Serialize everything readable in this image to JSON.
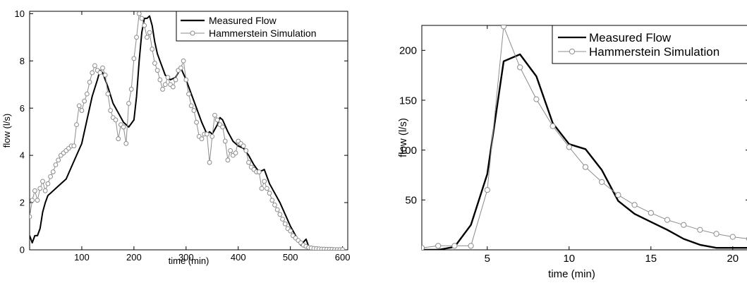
{
  "chart_data": [
    {
      "type": "line",
      "xlabel": "time (min)",
      "ylabel": "flow (l/s)",
      "xlim": [
        0,
        610
      ],
      "ylim": [
        0,
        10.1
      ],
      "xticks": [
        100,
        200,
        300,
        400,
        500,
        600
      ],
      "xtick_labels": [
        "100",
        "200",
        "300",
        "400",
        "500",
        "600"
      ],
      "yticks": [
        0,
        2,
        4,
        6,
        8,
        10
      ],
      "ytick_labels": [
        "0",
        "2",
        "4",
        "6",
        "8",
        "10"
      ],
      "grid": false,
      "legend_position": "top-right",
      "series": [
        {
          "name": "Measured Flow",
          "color": "#000000",
          "marker": "none",
          "x": [
            0,
            5,
            10,
            15,
            20,
            25,
            30,
            35,
            40,
            50,
            60,
            70,
            80,
            90,
            100,
            110,
            120,
            130,
            135,
            140,
            145,
            150,
            160,
            170,
            180,
            190,
            200,
            205,
            210,
            215,
            220,
            225,
            230,
            235,
            240,
            245,
            250,
            255,
            260,
            270,
            280,
            290,
            300,
            310,
            320,
            330,
            340,
            345,
            350,
            360,
            365,
            370,
            380,
            390,
            400,
            410,
            420,
            430,
            440,
            450,
            460,
            470,
            480,
            490,
            500,
            510,
            520,
            530,
            535,
            540,
            545
          ],
          "y": [
            0.6,
            0.3,
            0.6,
            0.6,
            0.9,
            1.6,
            2.0,
            2.3,
            2.4,
            2.6,
            2.8,
            3.0,
            3.5,
            4.0,
            4.5,
            5.5,
            6.5,
            7.2,
            7.6,
            7.5,
            7.2,
            6.9,
            6.2,
            5.8,
            5.4,
            5.2,
            5.5,
            6.5,
            8.0,
            9.2,
            9.8,
            9.8,
            9.9,
            9.5,
            8.8,
            8.3,
            8.0,
            7.7,
            7.4,
            7.2,
            7.3,
            7.7,
            7.2,
            6.6,
            6.0,
            5.4,
            4.9,
            5.0,
            4.9,
            5.3,
            5.6,
            5.5,
            5.0,
            4.6,
            4.4,
            4.3,
            4.0,
            3.6,
            3.3,
            3.4,
            2.8,
            2.4,
            2.0,
            1.5,
            1.0,
            0.6,
            0.2,
            0.45,
            0.15,
            0.0,
            0.0
          ]
        },
        {
          "name": "Hammerstein Simulation",
          "color": "#8c8c8c",
          "marker": "circle",
          "x": [
            0,
            5,
            10,
            15,
            20,
            25,
            30,
            35,
            40,
            45,
            50,
            55,
            60,
            65,
            70,
            75,
            80,
            85,
            90,
            95,
            100,
            105,
            110,
            115,
            120,
            125,
            130,
            135,
            140,
            145,
            150,
            155,
            160,
            165,
            170,
            175,
            180,
            185,
            190,
            195,
            200,
            205,
            210,
            215,
            220,
            225,
            230,
            235,
            240,
            245,
            250,
            255,
            260,
            265,
            270,
            275,
            280,
            285,
            290,
            295,
            300,
            305,
            310,
            315,
            320,
            325,
            330,
            335,
            340,
            345,
            350,
            355,
            360,
            365,
            370,
            375,
            380,
            385,
            390,
            395,
            400,
            405,
            410,
            415,
            420,
            425,
            430,
            435,
            440,
            445,
            450,
            455,
            460,
            465,
            470,
            475,
            480,
            485,
            490,
            495,
            500,
            505,
            510,
            515,
            520,
            525,
            530,
            535,
            540,
            545,
            550,
            555,
            560,
            565,
            570,
            575,
            580,
            585,
            590,
            595,
            600
          ],
          "y": [
            1.4,
            2.1,
            2.5,
            2.1,
            2.6,
            2.9,
            2.5,
            2.8,
            3.1,
            3.3,
            3.6,
            3.8,
            4.0,
            4.1,
            4.2,
            4.3,
            4.4,
            4.4,
            5.3,
            6.1,
            5.9,
            6.3,
            6.6,
            7.1,
            7.5,
            7.8,
            7.6,
            7.5,
            7.7,
            7.4,
            6.6,
            5.9,
            5.6,
            5.5,
            4.7,
            5.3,
            5.2,
            4.5,
            6.2,
            6.8,
            8.1,
            9.0,
            10.0,
            9.8,
            9.5,
            9.0,
            9.2,
            8.5,
            7.9,
            7.6,
            7.2,
            6.8,
            7.0,
            7.3,
            7.0,
            6.9,
            7.2,
            7.6,
            7.7,
            8.0,
            7.2,
            6.6,
            6.1,
            5.9,
            5.4,
            4.8,
            4.7,
            4.9,
            4.9,
            3.7,
            4.8,
            5.7,
            5.5,
            5.3,
            5.2,
            4.6,
            3.8,
            4.2,
            4.0,
            4.1,
            4.6,
            4.5,
            4.4,
            4.2,
            3.7,
            3.5,
            3.4,
            3.3,
            3.3,
            2.6,
            2.9,
            2.6,
            2.4,
            2.1,
            1.9,
            1.7,
            1.5,
            1.3,
            1.1,
            0.9,
            0.8,
            0.6,
            0.5,
            0.4,
            0.3,
            0.2,
            0.15,
            0.1,
            0.08,
            0.06,
            0.05,
            0.04,
            0.03,
            0.03,
            0.02,
            0.02,
            0.02,
            0.01,
            0.01,
            0.01,
            0.01
          ]
        }
      ]
    },
    {
      "type": "line",
      "xlabel": "time (min)",
      "ylabel": "flow (l/s)",
      "xlim": [
        1,
        21
      ],
      "ylim": [
        0,
        225
      ],
      "xticks": [
        5,
        10,
        15,
        20
      ],
      "xtick_labels": [
        "5",
        "10",
        "15",
        "20"
      ],
      "yticks": [
        50,
        100,
        150,
        200
      ],
      "ytick_labels": [
        "50",
        "100",
        "150",
        "200"
      ],
      "grid": false,
      "legend_position": "top-right",
      "series": [
        {
          "name": "Measured Flow",
          "color": "#000000",
          "marker": "none",
          "x": [
            1,
            2,
            3,
            4,
            5,
            6,
            7,
            8,
            9,
            10,
            11,
            12,
            13,
            14,
            15,
            16,
            17,
            18,
            19,
            20,
            21
          ],
          "y": [
            0,
            0,
            3,
            25,
            76,
            189,
            196,
            174,
            127,
            106,
            101,
            80,
            49,
            36,
            28,
            20,
            11,
            5,
            2,
            2,
            2
          ]
        },
        {
          "name": "Hammerstein Simulation",
          "color": "#8c8c8c",
          "marker": "circle",
          "x": [
            1,
            2,
            3,
            4,
            5,
            6,
            7,
            8,
            9,
            10,
            11,
            12,
            13,
            14,
            15,
            16,
            17,
            18,
            19,
            20,
            21
          ],
          "y": [
            2,
            4,
            4,
            4,
            60,
            224,
            183,
            151,
            124,
            103,
            83,
            68,
            55,
            45,
            37,
            30,
            25,
            20,
            16,
            13,
            11
          ]
        }
      ]
    }
  ]
}
